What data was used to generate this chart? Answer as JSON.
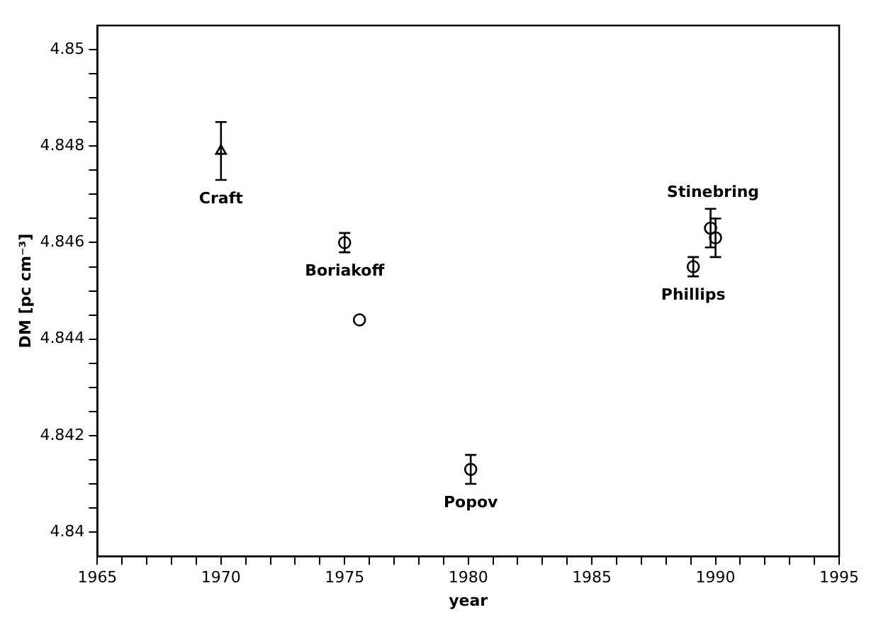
{
  "chart_data": {
    "type": "scatter",
    "xlabel": "year",
    "ylabel": "DM [pc cm⁻³]",
    "xlim": [
      1965,
      1995
    ],
    "xticks": [
      1965,
      {
        "value": 1966,
        "label": null
      },
      {
        "value": 1967,
        "label": null
      },
      {
        "value": 1968,
        "label": null
      },
      {
        "value": 1969,
        "label": null
      },
      1970,
      {
        "value": 1971,
        "label": null
      },
      {
        "value": 1972,
        "label": null
      },
      {
        "value": 1973,
        "label": null
      },
      {
        "value": 1974,
        "label": null
      },
      1975,
      {
        "value": 1976,
        "label": null
      },
      {
        "value": 1977,
        "label": null
      },
      {
        "value": 1978,
        "label": null
      },
      {
        "value": 1979,
        "label": null
      },
      1980,
      {
        "value": 1981,
        "label": null
      },
      {
        "value": 1982,
        "label": null
      },
      {
        "value": 1983,
        "label": null
      },
      {
        "value": 1984,
        "label": null
      },
      1985,
      {
        "value": 1986,
        "label": null
      },
      {
        "value": 1987,
        "label": null
      },
      {
        "value": 1988,
        "label": null
      },
      {
        "value": 1989,
        "label": null
      },
      1990,
      {
        "value": 1991,
        "label": null
      },
      {
        "value": 1992,
        "label": null
      },
      {
        "value": 1993,
        "label": null
      },
      {
        "value": 1994,
        "label": null
      },
      1995
    ],
    "ylim": [
      4.8395,
      4.8505
    ],
    "yticks": [
      4.84,
      {
        "value": 4.8405,
        "label": null
      },
      {
        "value": 4.841,
        "label": null
      },
      {
        "value": 4.8415,
        "label": null
      },
      4.842,
      {
        "value": 4.8425,
        "label": null
      },
      {
        "value": 4.843,
        "label": null
      },
      {
        "value": 4.8435,
        "label": null
      },
      4.844,
      {
        "value": 4.8445,
        "label": null
      },
      {
        "value": 4.845,
        "label": null
      },
      {
        "value": 4.8455,
        "label": null
      },
      4.846,
      {
        "value": 4.8465,
        "label": null
      },
      {
        "value": 4.847,
        "label": null
      },
      {
        "value": 4.8475,
        "label": null
      },
      4.848,
      {
        "value": 4.8485,
        "label": null
      },
      {
        "value": 4.849,
        "label": null
      },
      {
        "value": 4.8495,
        "label": null
      },
      4.85
    ],
    "series": [
      {
        "name": "Craft",
        "color": "#000000",
        "marker": "triangle",
        "x": [
          1970
        ],
        "values": [
          4.8479
        ],
        "errors": [
          [
            4.8473,
            4.8485
          ]
        ]
      },
      {
        "name": "Boriakoff",
        "color": "#000000",
        "marker": "circle",
        "x": [
          1975
        ],
        "values": [
          4.846
        ],
        "errors": [
          [
            4.8458,
            4.8462
          ]
        ]
      },
      {
        "color": "#000000",
        "marker": "circle",
        "x": [
          1975.6
        ],
        "values": [
          4.8444
        ]
      },
      {
        "name": "Popov",
        "color": "#000000",
        "marker": "circle",
        "x": [
          1980.1
        ],
        "values": [
          4.8413
        ],
        "errors": [
          [
            4.841,
            4.8416
          ]
        ]
      },
      {
        "name": "Phillips",
        "color": "#000000",
        "marker": "circle",
        "x": [
          1989.1
        ],
        "values": [
          4.8455
        ],
        "errors": [
          [
            4.8453,
            4.8457
          ]
        ]
      },
      {
        "name": "Stinebring",
        "color": "#000000",
        "marker": "circle",
        "x": [
          1989.8,
          1990
        ],
        "values": [
          4.8463,
          4.8461
        ],
        "errors": [
          [
            4.8459,
            4.8467
          ],
          [
            4.8457,
            4.8465
          ]
        ]
      }
    ]
  }
}
